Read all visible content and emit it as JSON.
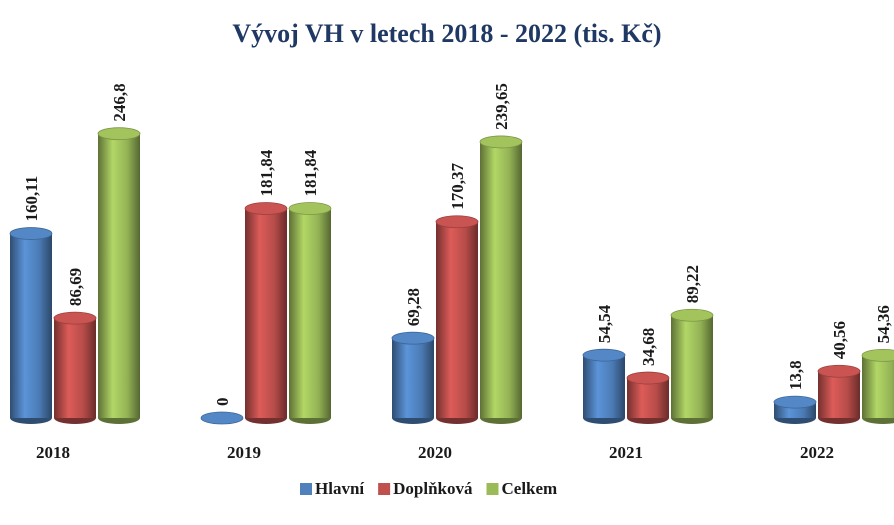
{
  "chart_data": {
    "type": "bar",
    "title": "Vývoj VH v letech 2018 - 2022 (tis. Kč)",
    "categories": [
      "2018",
      "2019",
      "2020",
      "2021",
      "2022"
    ],
    "series": [
      {
        "name": "Hlavní",
        "color": "#4f81bd",
        "values": [
          160.11,
          0,
          69.28,
          54.54,
          13.8
        ],
        "value_labels": [
          "160,11",
          "0",
          "69,28",
          "54,54",
          "13,8"
        ]
      },
      {
        "name": "Doplňková",
        "color": "#c0504d",
        "values": [
          86.69,
          181.84,
          170.37,
          34.68,
          40.56
        ],
        "value_labels": [
          "86,69",
          "181,84",
          "170,37",
          "34,68",
          "40,56"
        ]
      },
      {
        "name": "Celkem",
        "color": "#9bbb59",
        "values": [
          246.8,
          181.84,
          239.65,
          89.22,
          54.36
        ],
        "value_labels": [
          "246,8",
          "181,84",
          "239,65",
          "89,22",
          "54,36"
        ]
      }
    ],
    "ylim": [
      0,
      250
    ],
    "legend": "bottom"
  }
}
